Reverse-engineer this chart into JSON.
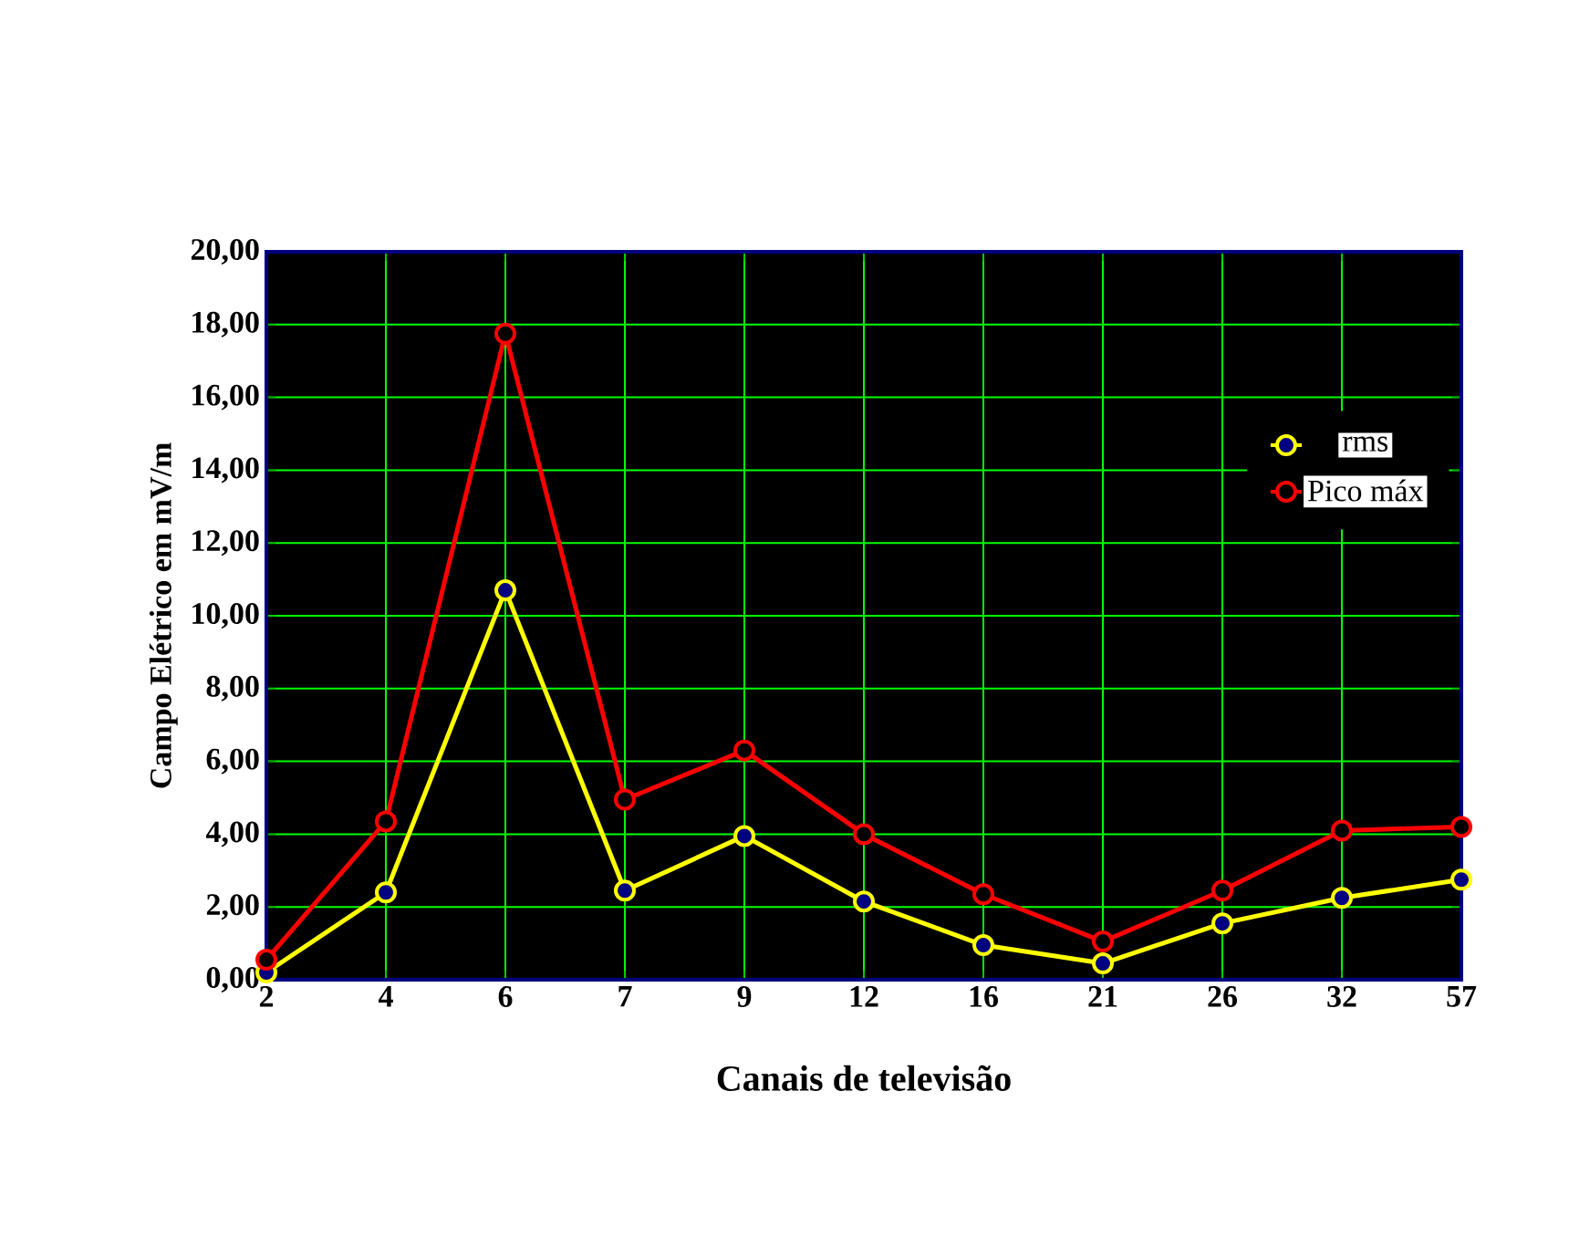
{
  "chart_data": {
    "type": "line",
    "xlabel": "Canais de televisão",
    "ylabel": "Campo Elétrico em mV/m",
    "categories": [
      "2",
      "4",
      "6",
      "7",
      "9",
      "12",
      "16",
      "21",
      "26",
      "32",
      "57"
    ],
    "series": [
      {
        "name": "rms",
        "color": "#ffff00",
        "values": [
          0.2,
          2.4,
          10.7,
          2.45,
          3.95,
          2.15,
          0.95,
          0.45,
          1.55,
          2.25,
          2.75
        ]
      },
      {
        "name": "Pico máx",
        "color": "#ff0000",
        "values": [
          0.55,
          4.35,
          17.75,
          4.95,
          6.3,
          4.0,
          2.35,
          1.05,
          2.45,
          4.1,
          4.2
        ]
      }
    ],
    "ylim": [
      0,
      20
    ],
    "yticks": [
      {
        "value": 0,
        "label": "0,00"
      },
      {
        "value": 2,
        "label": "2,00"
      },
      {
        "value": 4,
        "label": "4,00"
      },
      {
        "value": 6,
        "label": "6,00"
      },
      {
        "value": 8,
        "label": "8,00"
      },
      {
        "value": 10,
        "label": "10,00"
      },
      {
        "value": 12,
        "label": "12,00"
      },
      {
        "value": 14,
        "label": "14,00"
      },
      {
        "value": 16,
        "label": "16,00"
      },
      {
        "value": 18,
        "label": "18,00"
      },
      {
        "value": 20,
        "label": "20,00"
      }
    ],
    "grid": true,
    "legend": "right",
    "marker": "circle",
    "line_style": "solid"
  }
}
